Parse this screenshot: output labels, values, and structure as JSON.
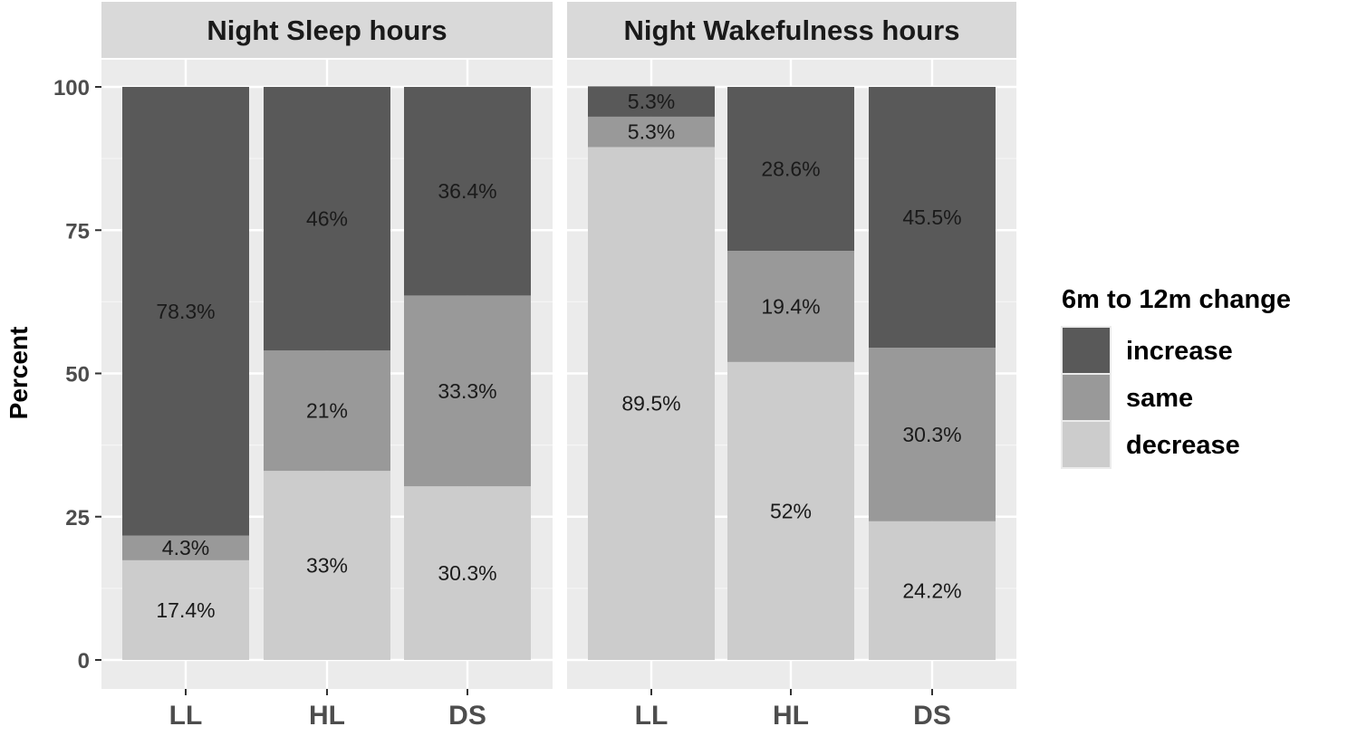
{
  "chart_data": {
    "type": "bar",
    "stacked": true,
    "ylabel": "Percent",
    "ylim": [
      0,
      100
    ],
    "yticks": [
      0,
      25,
      50,
      75,
      100
    ],
    "categories": [
      "LL",
      "HL",
      "DS"
    ],
    "grid": true,
    "legend": {
      "title": "6m to 12m change",
      "placement": "right",
      "entries": [
        {
          "name": "increase",
          "color": "#595959"
        },
        {
          "name": "same",
          "color": "#999999"
        },
        {
          "name": "decrease",
          "color": "#cccccc"
        }
      ]
    },
    "panels": [
      {
        "title": "Night Sleep hours",
        "series": [
          {
            "name": "decrease",
            "values": [
              17.4,
              33,
              30.3
            ],
            "labels": [
              "17.4%",
              "33%",
              "30.3%"
            ]
          },
          {
            "name": "same",
            "values": [
              4.3,
              21,
              33.3
            ],
            "labels": [
              "4.3%",
              "21%",
              "33.3%"
            ]
          },
          {
            "name": "increase",
            "values": [
              78.3,
              46,
              36.4
            ],
            "labels": [
              "78.3%",
              "46%",
              "36.4%"
            ]
          }
        ]
      },
      {
        "title": "Night Wakefulness hours",
        "series": [
          {
            "name": "decrease",
            "values": [
              89.5,
              52,
              24.2
            ],
            "labels": [
              "89.5%",
              "52%",
              "24.2%"
            ]
          },
          {
            "name": "same",
            "values": [
              5.3,
              19.4,
              30.3
            ],
            "labels": [
              "5.3%",
              "19.4%",
              "30.3%"
            ]
          },
          {
            "name": "increase",
            "values": [
              5.3,
              28.6,
              45.5
            ],
            "labels": [
              "5.3%",
              "28.6%",
              "45.5%"
            ]
          }
        ]
      }
    ]
  }
}
